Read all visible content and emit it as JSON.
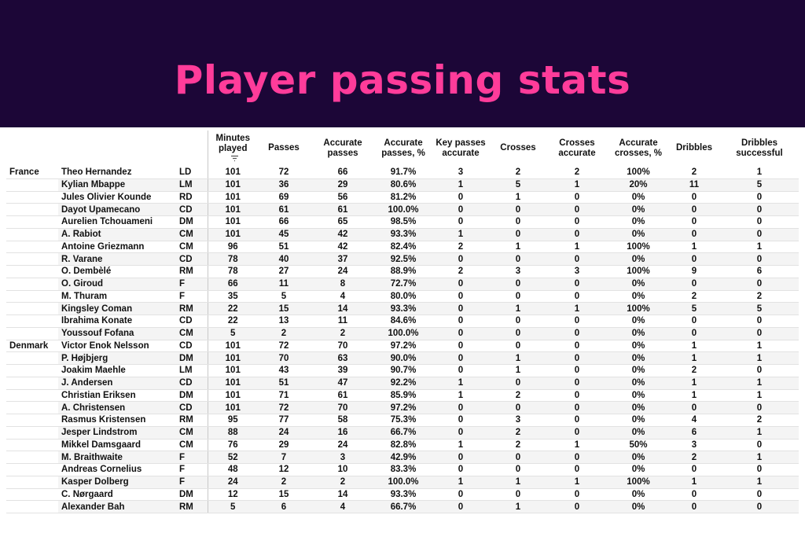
{
  "title": "Player passing stats",
  "colors": {
    "header_bg": "#1c0637",
    "title": "#ff3c9a"
  },
  "chart_data": {
    "type": "table",
    "columns": [
      "",
      "",
      "",
      "Minutes played",
      "Passes",
      "Accurate passes",
      "Accurate passes, %",
      "Key passes accurate",
      "Crosses",
      "Crosses accurate",
      "Accurate crosses, %",
      "Dribbles",
      "Dribbles successful"
    ],
    "sort_icon": "sort-icon",
    "rows": [
      [
        "France",
        "Theo Hernandez",
        "LD",
        "101",
        "72",
        "66",
        "91.7%",
        "3",
        "2",
        "2",
        "100%",
        "2",
        "1"
      ],
      [
        "",
        "Kylian Mbappe",
        "LM",
        "101",
        "36",
        "29",
        "80.6%",
        "1",
        "5",
        "1",
        "20%",
        "11",
        "5"
      ],
      [
        "",
        "Jules Olivier Kounde",
        "RD",
        "101",
        "69",
        "56",
        "81.2%",
        "0",
        "1",
        "0",
        "0%",
        "0",
        "0"
      ],
      [
        "",
        "Dayot Upamecano",
        "CD",
        "101",
        "61",
        "61",
        "100.0%",
        "0",
        "0",
        "0",
        "0%",
        "0",
        "0"
      ],
      [
        "",
        "Aurelien Tchouameni",
        "DM",
        "101",
        "66",
        "65",
        "98.5%",
        "0",
        "0",
        "0",
        "0%",
        "0",
        "0"
      ],
      [
        "",
        "A. Rabiot",
        "CM",
        "101",
        "45",
        "42",
        "93.3%",
        "1",
        "0",
        "0",
        "0%",
        "0",
        "0"
      ],
      [
        "",
        "Antoine Griezmann",
        "CM",
        "96",
        "51",
        "42",
        "82.4%",
        "2",
        "1",
        "1",
        "100%",
        "1",
        "1"
      ],
      [
        "",
        "R. Varane",
        "CD",
        "78",
        "40",
        "37",
        "92.5%",
        "0",
        "0",
        "0",
        "0%",
        "0",
        "0"
      ],
      [
        "",
        "O. Dembèlé",
        "RM",
        "78",
        "27",
        "24",
        "88.9%",
        "2",
        "3",
        "3",
        "100%",
        "9",
        "6"
      ],
      [
        "",
        "O. Giroud",
        "F",
        "66",
        "11",
        "8",
        "72.7%",
        "0",
        "0",
        "0",
        "0%",
        "0",
        "0"
      ],
      [
        "",
        "M. Thuram",
        "F",
        "35",
        "5",
        "4",
        "80.0%",
        "0",
        "0",
        "0",
        "0%",
        "2",
        "2"
      ],
      [
        "",
        "Kingsley Coman",
        "RM",
        "22",
        "15",
        "14",
        "93.3%",
        "0",
        "1",
        "1",
        "100%",
        "5",
        "5"
      ],
      [
        "",
        "Ibrahima Konate",
        "CD",
        "22",
        "13",
        "11",
        "84.6%",
        "0",
        "0",
        "0",
        "0%",
        "0",
        "0"
      ],
      [
        "",
        "Youssouf Fofana",
        "CM",
        "5",
        "2",
        "2",
        "100.0%",
        "0",
        "0",
        "0",
        "0%",
        "0",
        "0"
      ],
      [
        "Denmark",
        "Victor Enok Nelsson",
        "CD",
        "101",
        "72",
        "70",
        "97.2%",
        "0",
        "0",
        "0",
        "0%",
        "1",
        "1"
      ],
      [
        "",
        "P. Højbjerg",
        "DM",
        "101",
        "70",
        "63",
        "90.0%",
        "0",
        "1",
        "0",
        "0%",
        "1",
        "1"
      ],
      [
        "",
        "Joakim Maehle",
        "LM",
        "101",
        "43",
        "39",
        "90.7%",
        "0",
        "1",
        "0",
        "0%",
        "2",
        "0"
      ],
      [
        "",
        "J. Andersen",
        "CD",
        "101",
        "51",
        "47",
        "92.2%",
        "1",
        "0",
        "0",
        "0%",
        "1",
        "1"
      ],
      [
        "",
        "Christian Eriksen",
        "DM",
        "101",
        "71",
        "61",
        "85.9%",
        "1",
        "2",
        "0",
        "0%",
        "1",
        "1"
      ],
      [
        "",
        "A. Christensen",
        "CD",
        "101",
        "72",
        "70",
        "97.2%",
        "0",
        "0",
        "0",
        "0%",
        "0",
        "0"
      ],
      [
        "",
        "Rasmus Kristensen",
        "RM",
        "95",
        "77",
        "58",
        "75.3%",
        "0",
        "3",
        "0",
        "0%",
        "4",
        "2"
      ],
      [
        "",
        "Jesper Lindstrom",
        "CM",
        "88",
        "24",
        "16",
        "66.7%",
        "0",
        "2",
        "0",
        "0%",
        "6",
        "1"
      ],
      [
        "",
        "Mikkel Damsgaard",
        "CM",
        "76",
        "29",
        "24",
        "82.8%",
        "1",
        "2",
        "1",
        "50%",
        "3",
        "0"
      ],
      [
        "",
        "M. Braithwaite",
        "F",
        "52",
        "7",
        "3",
        "42.9%",
        "0",
        "0",
        "0",
        "0%",
        "2",
        "1"
      ],
      [
        "",
        "Andreas Cornelius",
        "F",
        "48",
        "12",
        "10",
        "83.3%",
        "0",
        "0",
        "0",
        "0%",
        "0",
        "0"
      ],
      [
        "",
        "Kasper Dolberg",
        "F",
        "24",
        "2",
        "2",
        "100.0%",
        "1",
        "1",
        "1",
        "100%",
        "1",
        "1"
      ],
      [
        "",
        "C. Nørgaard",
        "DM",
        "12",
        "15",
        "14",
        "93.3%",
        "0",
        "0",
        "0",
        "0%",
        "0",
        "0"
      ],
      [
        "",
        "Alexander Bah",
        "RM",
        "5",
        "6",
        "4",
        "66.7%",
        "0",
        "1",
        "0",
        "0%",
        "0",
        "0"
      ]
    ]
  }
}
